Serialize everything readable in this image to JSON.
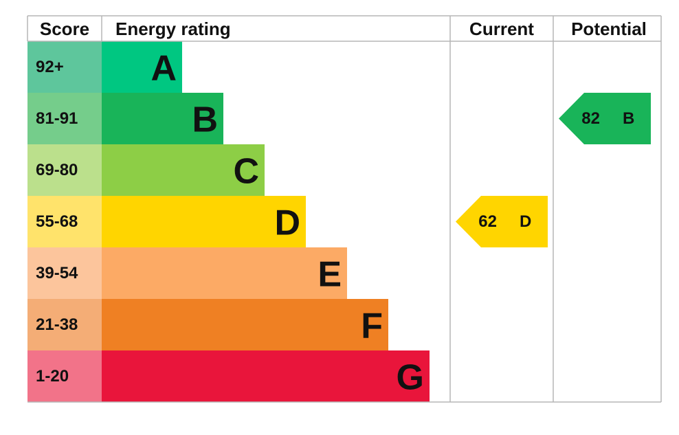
{
  "header": {
    "score": "Score",
    "rating": "Energy rating",
    "current": "Current",
    "potential": "Potential"
  },
  "rows": [
    {
      "score": "92+",
      "band": "A",
      "color": "#00c781",
      "score_color": "#5ec69c"
    },
    {
      "score": "81-91",
      "band": "B",
      "color": "#19b459",
      "score_color": "#75cd8b"
    },
    {
      "score": "69-80",
      "band": "C",
      "color": "#8dce46",
      "score_color": "#bbe08c"
    },
    {
      "score": "55-68",
      "band": "D",
      "color": "#ffd500",
      "score_color": "#ffe36b"
    },
    {
      "score": "39-54",
      "band": "E",
      "color": "#fcaa65",
      "score_color": "#fcc59c"
    },
    {
      "score": "21-38",
      "band": "F",
      "color": "#ef8023",
      "score_color": "#f4ad76"
    },
    {
      "score": "1-20",
      "band": "G",
      "color": "#e9153b",
      "score_color": "#f27389"
    }
  ],
  "current": {
    "score": 62,
    "band": "D"
  },
  "potential": {
    "score": 82,
    "band": "B"
  }
}
